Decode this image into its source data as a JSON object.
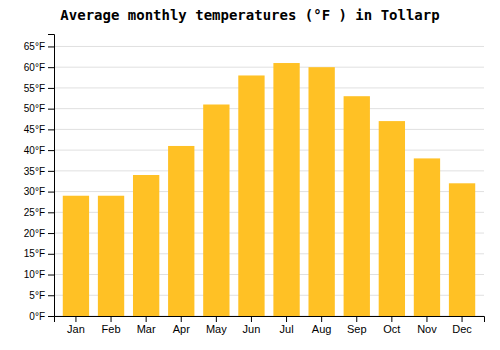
{
  "chart_data": {
    "type": "bar",
    "title": "Average monthly temperatures (°F ) in Tollarp",
    "categories": [
      "Jan",
      "Feb",
      "Mar",
      "Apr",
      "May",
      "Jun",
      "Jul",
      "Aug",
      "Sep",
      "Oct",
      "Nov",
      "Dec"
    ],
    "values": [
      29,
      29,
      34,
      41,
      51,
      58,
      61,
      60,
      53,
      47,
      38,
      32
    ],
    "color": "#FFC125",
    "ylim": [
      0,
      68
    ],
    "yticks": [
      {
        "value": 0,
        "label": "0°F"
      },
      {
        "value": 5,
        "label": "5°F"
      },
      {
        "value": 10,
        "label": "10°F"
      },
      {
        "value": 15,
        "label": "15°F"
      },
      {
        "value": 20,
        "label": "20°F"
      },
      {
        "value": 25,
        "label": "25°F"
      },
      {
        "value": 30,
        "label": "30°F"
      },
      {
        "value": 35,
        "label": "35°F"
      },
      {
        "value": 40,
        "label": "40°F"
      },
      {
        "value": 45,
        "label": "45°F"
      },
      {
        "value": 50,
        "label": "50°F"
      },
      {
        "value": 55,
        "label": "55°F"
      },
      {
        "value": 60,
        "label": "60°F"
      },
      {
        "value": 65,
        "label": "65°F"
      }
    ],
    "grid": true
  }
}
